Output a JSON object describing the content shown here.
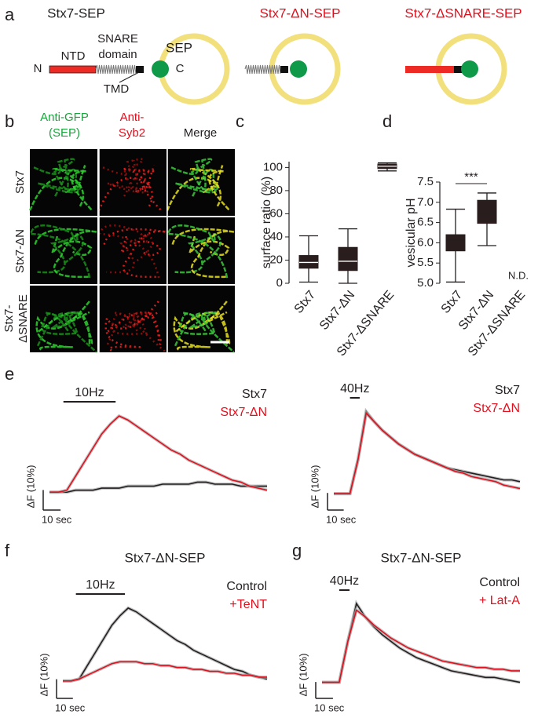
{
  "panel_labels": [
    "a",
    "b",
    "c",
    "d",
    "e",
    "f",
    "g"
  ],
  "panel_a": {
    "constructs": [
      "Stx7-SEP",
      "Stx7-ΔN-SEP",
      "Stx7-ΔSNARE-SEP"
    ],
    "labels": {
      "n": "N",
      "ntd": "NTD",
      "snare": "SNARE",
      "domain": "domain",
      "tmd": "TMD",
      "sep": "SEP",
      "c": "C"
    }
  },
  "panel_b": {
    "columns": [
      [
        "Anti-GFP",
        "(SEP)"
      ],
      [
        "Anti-",
        "Syb2"
      ],
      [
        "Merge"
      ]
    ],
    "rows": [
      [
        "Stx7"
      ],
      [
        "Stx7-ΔN"
      ],
      [
        "Stx7-",
        "ΔSNARE"
      ]
    ]
  },
  "chart_data": [
    {
      "type": "box",
      "ylabel": "surface ratio (%)",
      "categories": [
        "Stx7",
        "Stx7-ΔN",
        "Stx7-ΔSNARE"
      ],
      "boxes": [
        [
          1,
          13,
          18,
          24,
          41
        ],
        [
          0,
          11,
          19,
          31,
          47
        ],
        [
          97,
          99,
          101,
          103,
          104
        ]
      ],
      "color": "#2a1d1d",
      "ylim": [
        0,
        105
      ],
      "yticks": [
        0,
        20,
        40,
        60,
        80,
        100
      ]
    },
    {
      "type": "box",
      "ylabel": "vesicular pH",
      "categories": [
        "Stx7",
        "Stx7-ΔN",
        "Stx7-ΔSNARE"
      ],
      "boxes": [
        [
          5.03,
          5.8,
          6.07,
          6.2,
          6.83
        ],
        [
          5.93,
          6.48,
          6.73,
          7.05,
          7.23
        ],
        null
      ],
      "color": "#2a1d1d",
      "ylim": [
        5,
        7.5
      ],
      "yticks": [
        {
          "value": 5,
          "label": "5.0"
        },
        5.5,
        {
          "value": 6,
          "label": "6.0"
        },
        6.5,
        {
          "value": 7,
          "label": "7.0"
        },
        7.5
      ],
      "significance": "***",
      "not_determined": "N.D."
    },
    {
      "type": "line",
      "x": [
        0,
        5,
        10,
        15,
        20,
        25,
        30,
        35,
        40,
        45,
        50,
        55,
        60,
        65,
        70,
        75,
        80,
        85,
        90,
        95,
        100,
        105,
        110,
        115,
        120,
        125
      ],
      "xlim": [
        0,
        125
      ],
      "ylim": [
        -5,
        40
      ],
      "series": [
        {
          "name": "Stx7",
          "color": "#231f20",
          "values": [
            0,
            0,
            0,
            1,
            1,
            1,
            2,
            2,
            2,
            3,
            3,
            3,
            3,
            4,
            4,
            4,
            4,
            5,
            5,
            4,
            4,
            4,
            3,
            3,
            3,
            3
          ]
        },
        {
          "name": "Stx7-ΔN",
          "color": "#e0101e",
          "values": [
            0,
            0,
            1,
            8,
            15,
            22,
            29,
            34,
            38,
            36,
            33,
            30,
            27,
            24,
            21,
            19,
            16,
            14,
            12,
            10,
            8,
            6,
            5,
            3,
            2,
            1
          ]
        }
      ],
      "stimulus": {
        "label": "10Hz",
        "start": 8,
        "end": 38
      },
      "scale_bar": {
        "x": 10,
        "y": 10,
        "x_label": "10 sec",
        "y_label": "ΔF (10%)"
      }
    },
    {
      "type": "line",
      "x": [
        0,
        5,
        10,
        15,
        20,
        25,
        30,
        35,
        40,
        45,
        50,
        55,
        60,
        65,
        70,
        75,
        80,
        85,
        90,
        95,
        100,
        105,
        110,
        115
      ],
      "xlim": [
        0,
        115
      ],
      "ylim": [
        -5,
        50
      ],
      "series": [
        {
          "name": "Stx7",
          "color": "#231f20",
          "values": [
            0,
            0,
            0,
            20,
            48,
            42,
            37,
            33,
            29,
            26,
            23,
            21,
            19,
            17,
            15,
            14,
            13,
            12,
            11,
            10,
            9,
            8,
            8,
            7
          ]
        },
        {
          "name": "Stx7-ΔN",
          "color": "#e0101e",
          "values": [
            0,
            0,
            0,
            20,
            47,
            42,
            37,
            33,
            29,
            26,
            23,
            21,
            19,
            17,
            15,
            13,
            12,
            10,
            9,
            8,
            7,
            5,
            4,
            3
          ]
        }
      ],
      "stimulus": {
        "label": "40Hz",
        "start": 10,
        "end": 16
      },
      "scale_bar": {
        "x": 10,
        "y": 10,
        "x_label": "10 sec",
        "y_label": "ΔF (10%)"
      }
    },
    {
      "type": "line",
      "title": "Stx7-ΔN-SEP",
      "x": [
        0,
        5,
        10,
        15,
        20,
        25,
        30,
        35,
        40,
        45,
        50,
        55,
        60,
        65,
        70,
        75,
        80,
        85,
        90,
        95,
        100,
        105,
        110,
        115,
        120,
        125
      ],
      "xlim": [
        0,
        125
      ],
      "ylim": [
        -5,
        40
      ],
      "series": [
        {
          "name": "Control",
          "color": "#231f20",
          "values": [
            0,
            0,
            1,
            8,
            15,
            22,
            29,
            34,
            38,
            36,
            33,
            30,
            27,
            24,
            21,
            19,
            16,
            14,
            12,
            10,
            8,
            6,
            5,
            3,
            2,
            1
          ]
        },
        {
          "name": "+TeNT",
          "color": "#e0101e",
          "values": [
            0,
            0,
            1,
            3,
            5,
            7,
            9,
            10,
            10,
            10,
            9,
            9,
            8,
            8,
            7,
            7,
            6,
            6,
            5,
            5,
            4,
            4,
            3,
            3,
            2,
            2
          ]
        }
      ],
      "stimulus": {
        "label": "10Hz",
        "start": 8,
        "end": 38
      },
      "scale_bar": {
        "x": 10,
        "y": 10,
        "x_label": "10 sec",
        "y_label": "ΔF (10%)"
      }
    },
    {
      "type": "line",
      "title": "Stx7-ΔN-SEP",
      "x": [
        0,
        5,
        10,
        15,
        20,
        25,
        30,
        35,
        40,
        45,
        50,
        55,
        60,
        65,
        70,
        75,
        80,
        85,
        90,
        95,
        100,
        105,
        110,
        115
      ],
      "xlim": [
        0,
        115
      ],
      "ylim": [
        -5,
        50
      ],
      "series": [
        {
          "name": "Control",
          "color": "#231f20",
          "values": [
            0,
            0,
            0,
            25,
            48,
            40,
            34,
            29,
            25,
            21,
            18,
            15,
            13,
            11,
            9,
            7,
            6,
            5,
            4,
            3,
            3,
            2,
            1,
            0
          ]
        },
        {
          "name": "+ Lat-A",
          "color": "#e0101e",
          "values": [
            0,
            0,
            0,
            25,
            44,
            40,
            35,
            31,
            27,
            24,
            21,
            19,
            17,
            15,
            13,
            12,
            11,
            10,
            9,
            9,
            8,
            8,
            7,
            7
          ]
        }
      ],
      "stimulus": {
        "label": "40Hz",
        "start": 10,
        "end": 16
      },
      "scale_bar": {
        "x": 10,
        "y": 10,
        "x_label": "10 sec",
        "y_label": "ΔF (10%)"
      }
    }
  ]
}
